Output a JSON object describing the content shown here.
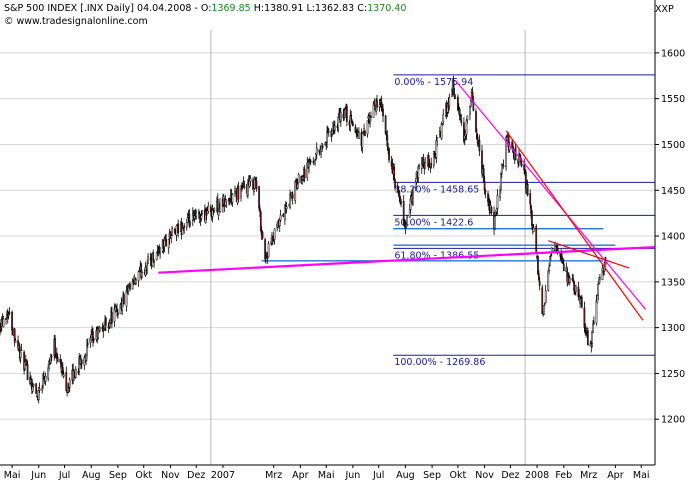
{
  "header": {
    "symbol_text": "S&P 500 INDEX [.INX Daily] 04.04.2008",
    "open_label": "O:",
    "open_value": "1369.85",
    "high_label": "H:",
    "high_value": "1380.91",
    "low_label": "L:",
    "low_value": "1362.83",
    "close_label": "C:",
    "close_value": "1370.40",
    "website": "© www.tradesignalonline.com",
    "scale_label": "XXP"
  },
  "colors": {
    "up_candle": "#ffffff",
    "down_candle": "#8b1a1a",
    "outline": "#000000",
    "fib_line": "#1a1aa8",
    "fib_text": "#1a1aa8",
    "support_line": "#ff00ff",
    "trend_line": "#ff0000",
    "channel_line": "#1e78d4",
    "grid": "#d8d8d8"
  },
  "chart_data": {
    "type": "candlestick",
    "ylim": [
      1150,
      1625
    ],
    "yticks": [
      1200,
      1250,
      1300,
      1350,
      1400,
      1450,
      1500,
      1550,
      1600
    ],
    "x_range": [
      "2006-05-01",
      "2008-05-31"
    ],
    "month_labels": [
      {
        "date": "2006-05-15",
        "label": "Mai"
      },
      {
        "date": "2006-06-15",
        "label": "Jun"
      },
      {
        "date": "2006-07-15",
        "label": "Jul"
      },
      {
        "date": "2006-08-15",
        "label": "Aug"
      },
      {
        "date": "2006-09-15",
        "label": "Sep"
      },
      {
        "date": "2006-10-15",
        "label": "Okt"
      },
      {
        "date": "2006-11-15",
        "label": "Nov"
      },
      {
        "date": "2006-12-15",
        "label": "Dez"
      },
      {
        "date": "2007-01-15",
        "label": "2007"
      },
      {
        "date": "2007-03-15",
        "label": "Mrz"
      },
      {
        "date": "2007-04-15",
        "label": "Apr"
      },
      {
        "date": "2007-05-15",
        "label": "Mai"
      },
      {
        "date": "2007-06-15",
        "label": "Jun"
      },
      {
        "date": "2007-07-15",
        "label": "Jul"
      },
      {
        "date": "2007-08-15",
        "label": "Aug"
      },
      {
        "date": "2007-09-15",
        "label": "Sep"
      },
      {
        "date": "2007-10-15",
        "label": "Okt"
      },
      {
        "date": "2007-11-15",
        "label": "Nov"
      },
      {
        "date": "2007-12-15",
        "label": "Dez"
      },
      {
        "date": "2008-01-15",
        "label": "2008"
      },
      {
        "date": "2008-02-15",
        "label": "Feb"
      },
      {
        "date": "2008-03-15",
        "label": "Mrz"
      },
      {
        "date": "2008-04-15",
        "label": "Apr"
      },
      {
        "date": "2008-05-15",
        "label": "Mai"
      }
    ],
    "vertical_markers": [
      "2007-01-01",
      "2008-01-01"
    ],
    "price_path": [
      {
        "date": "2006-05-01",
        "close": 1305
      },
      {
        "date": "2006-05-10",
        "close": 1318
      },
      {
        "date": "2006-05-25",
        "close": 1270
      },
      {
        "date": "2006-06-13",
        "close": 1225
      },
      {
        "date": "2006-07-03",
        "close": 1280
      },
      {
        "date": "2006-07-18",
        "close": 1235
      },
      {
        "date": "2006-08-15",
        "close": 1285
      },
      {
        "date": "2006-09-15",
        "close": 1320
      },
      {
        "date": "2006-10-15",
        "close": 1365
      },
      {
        "date": "2006-11-15",
        "close": 1400
      },
      {
        "date": "2006-12-15",
        "close": 1420
      },
      {
        "date": "2007-01-15",
        "close": 1435
      },
      {
        "date": "2007-02-22",
        "close": 1460
      },
      {
        "date": "2007-03-05",
        "close": 1375
      },
      {
        "date": "2007-03-20",
        "close": 1410
      },
      {
        "date": "2007-04-15",
        "close": 1465
      },
      {
        "date": "2007-05-15",
        "close": 1505
      },
      {
        "date": "2007-06-05",
        "close": 1535
      },
      {
        "date": "2007-06-25",
        "close": 1505
      },
      {
        "date": "2007-07-15",
        "close": 1552
      },
      {
        "date": "2007-08-01",
        "close": 1465
      },
      {
        "date": "2007-08-15",
        "close": 1410
      },
      {
        "date": "2007-08-31",
        "close": 1475
      },
      {
        "date": "2007-09-15",
        "close": 1480
      },
      {
        "date": "2007-10-09",
        "close": 1565
      },
      {
        "date": "2007-10-22",
        "close": 1505
      },
      {
        "date": "2007-10-31",
        "close": 1550
      },
      {
        "date": "2007-11-15",
        "close": 1455
      },
      {
        "date": "2007-11-26",
        "close": 1410
      },
      {
        "date": "2007-12-10",
        "close": 1505
      },
      {
        "date": "2007-12-31",
        "close": 1470
      },
      {
        "date": "2008-01-10",
        "close": 1410
      },
      {
        "date": "2008-01-22",
        "close": 1310
      },
      {
        "date": "2008-02-01",
        "close": 1395
      },
      {
        "date": "2008-02-20",
        "close": 1355
      },
      {
        "date": "2008-03-05",
        "close": 1330
      },
      {
        "date": "2008-03-17",
        "close": 1275
      },
      {
        "date": "2008-03-26",
        "close": 1345
      },
      {
        "date": "2008-04-04",
        "close": 1370
      }
    ],
    "fibonacci_levels": [
      {
        "label": "0.00% - 1575.94",
        "value": 1575.94
      },
      {
        "label": "38.20% - 1458.65",
        "value": 1458.65
      },
      {
        "label": "50.00% - 1422.6",
        "value": 1422.6
      },
      {
        "label": "61.80% - 1386.55",
        "value": 1386.55
      },
      {
        "label": "100.00% - 1269.86",
        "value": 1269.86
      }
    ],
    "fib_start_date": "2007-08-01",
    "fib_end_date": "2008-05-31",
    "trend_lines": [
      {
        "kind": "support",
        "from": {
          "date": "2006-11-01",
          "value": 1360
        },
        "to": {
          "date": "2008-05-31",
          "value": 1388
        }
      },
      {
        "kind": "resistance",
        "from": {
          "date": "2007-10-12",
          "value": 1570
        },
        "to": {
          "date": "2008-05-20",
          "value": 1320
        }
      },
      {
        "kind": "resistance",
        "from": {
          "date": "2007-12-10",
          "value": 1515
        },
        "to": {
          "date": "2008-05-17",
          "value": 1308
        }
      },
      {
        "kind": "resistance",
        "from": {
          "date": "2008-01-28",
          "value": 1395
        },
        "to": {
          "date": "2008-05-01",
          "value": 1365
        }
      }
    ],
    "channel_lines": [
      {
        "from": {
          "date": "2007-03-01",
          "value": 1373
        },
        "to": {
          "date": "2008-04-01",
          "value": 1373
        }
      },
      {
        "from": {
          "date": "2007-08-01",
          "value": 1408
        },
        "to": {
          "date": "2008-04-01",
          "value": 1408
        }
      },
      {
        "from": {
          "date": "2007-08-01",
          "value": 1390
        },
        "to": {
          "date": "2008-04-15",
          "value": 1390
        }
      }
    ]
  }
}
